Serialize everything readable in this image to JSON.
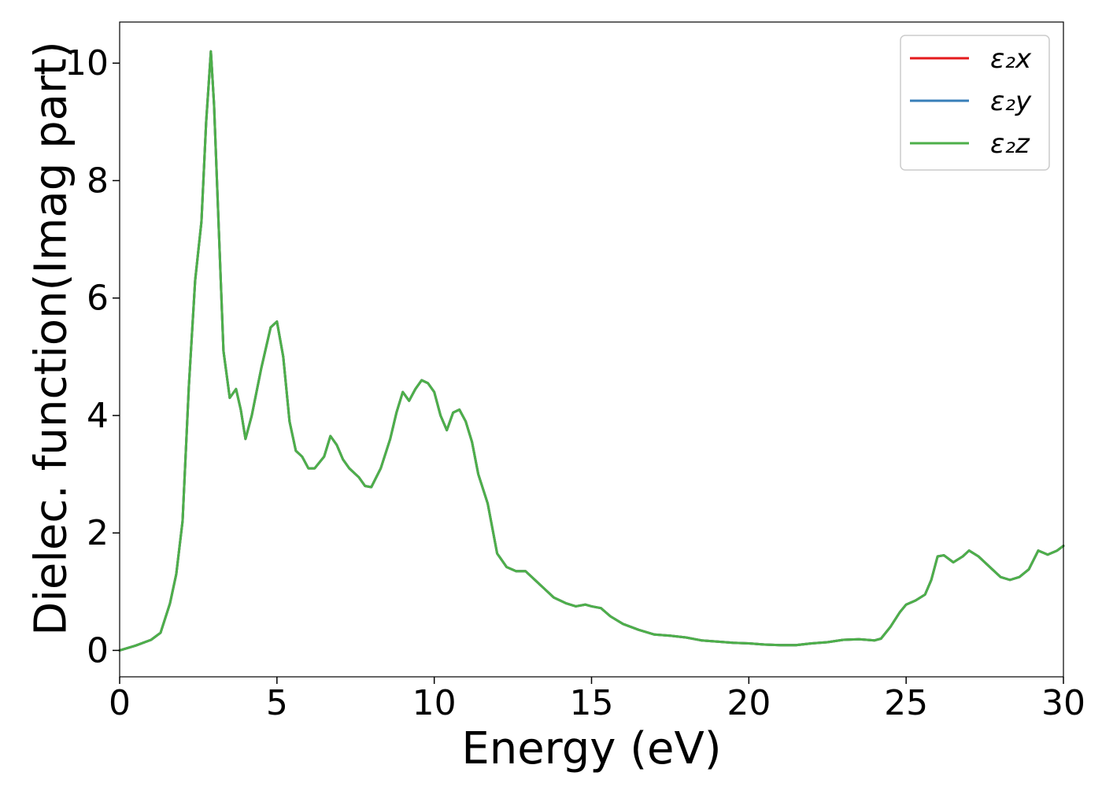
{
  "chart_data": {
    "type": "line",
    "xlabel": "Energy (eV)",
    "ylabel": "Dielec. function(Imag part)",
    "xlim": [
      0,
      30
    ],
    "ylim": [
      -0.45,
      10.7
    ],
    "xticks": [
      0,
      5,
      10,
      15,
      20,
      25,
      30
    ],
    "yticks": [
      0,
      2,
      4,
      6,
      8,
      10
    ],
    "legend_position": "top-right",
    "x": [
      0,
      0.5,
      1.0,
      1.3,
      1.6,
      1.8,
      2.0,
      2.2,
      2.4,
      2.6,
      2.75,
      2.9,
      3.0,
      3.15,
      3.3,
      3.5,
      3.7,
      3.85,
      4.0,
      4.2,
      4.5,
      4.8,
      5.0,
      5.2,
      5.4,
      5.6,
      5.8,
      6.0,
      6.2,
      6.5,
      6.7,
      6.9,
      7.1,
      7.3,
      7.6,
      7.8,
      8.0,
      8.3,
      8.6,
      8.8,
      9.0,
      9.2,
      9.4,
      9.6,
      9.8,
      10.0,
      10.2,
      10.4,
      10.6,
      10.8,
      11.0,
      11.2,
      11.4,
      11.7,
      12.0,
      12.3,
      12.6,
      12.9,
      13.2,
      13.5,
      13.8,
      14.2,
      14.5,
      14.8,
      15.0,
      15.3,
      15.6,
      16.0,
      16.5,
      17.0,
      17.5,
      18.0,
      18.5,
      19.0,
      19.5,
      20.0,
      20.5,
      21.0,
      21.5,
      22.0,
      22.5,
      23.0,
      23.5,
      24.0,
      24.2,
      24.5,
      24.8,
      25.0,
      25.3,
      25.6,
      25.8,
      26.0,
      26.2,
      26.5,
      26.8,
      27.0,
      27.3,
      27.6,
      28.0,
      28.3,
      28.6,
      28.9,
      29.2,
      29.5,
      29.8,
      30.0
    ],
    "series": [
      {
        "name": "ε₂x",
        "color": "#e41a1c",
        "values": [
          0.0,
          0.08,
          0.18,
          0.3,
          0.8,
          1.3,
          2.2,
          4.5,
          6.3,
          7.3,
          9.0,
          10.2,
          9.3,
          7.2,
          5.1,
          4.3,
          4.45,
          4.1,
          3.6,
          4.0,
          4.8,
          5.5,
          5.6,
          5.0,
          3.9,
          3.4,
          3.3,
          3.1,
          3.1,
          3.3,
          3.65,
          3.5,
          3.25,
          3.1,
          2.95,
          2.8,
          2.78,
          3.1,
          3.6,
          4.05,
          4.4,
          4.25,
          4.45,
          4.6,
          4.55,
          4.4,
          4.0,
          3.75,
          4.05,
          4.1,
          3.9,
          3.55,
          3.0,
          2.5,
          1.65,
          1.42,
          1.35,
          1.35,
          1.2,
          1.05,
          0.9,
          0.8,
          0.75,
          0.78,
          0.75,
          0.72,
          0.58,
          0.45,
          0.35,
          0.27,
          0.25,
          0.22,
          0.17,
          0.15,
          0.13,
          0.12,
          0.1,
          0.09,
          0.09,
          0.12,
          0.14,
          0.18,
          0.19,
          0.17,
          0.2,
          0.4,
          0.65,
          0.78,
          0.85,
          0.95,
          1.2,
          1.6,
          1.62,
          1.5,
          1.6,
          1.7,
          1.6,
          1.45,
          1.25,
          1.2,
          1.25,
          1.38,
          1.7,
          1.63,
          1.7,
          1.78
        ]
      },
      {
        "name": "ε₂y",
        "color": "#377eb8",
        "values": [
          0.0,
          0.08,
          0.18,
          0.3,
          0.8,
          1.3,
          2.2,
          4.5,
          6.3,
          7.3,
          9.0,
          10.2,
          9.3,
          7.2,
          5.1,
          4.3,
          4.45,
          4.1,
          3.6,
          4.0,
          4.8,
          5.5,
          5.6,
          5.0,
          3.9,
          3.4,
          3.3,
          3.1,
          3.1,
          3.3,
          3.65,
          3.5,
          3.25,
          3.1,
          2.95,
          2.8,
          2.78,
          3.1,
          3.6,
          4.05,
          4.4,
          4.25,
          4.45,
          4.6,
          4.55,
          4.4,
          4.0,
          3.75,
          4.05,
          4.1,
          3.9,
          3.55,
          3.0,
          2.5,
          1.65,
          1.42,
          1.35,
          1.35,
          1.2,
          1.05,
          0.9,
          0.8,
          0.75,
          0.78,
          0.75,
          0.72,
          0.58,
          0.45,
          0.35,
          0.27,
          0.25,
          0.22,
          0.17,
          0.15,
          0.13,
          0.12,
          0.1,
          0.09,
          0.09,
          0.12,
          0.14,
          0.18,
          0.19,
          0.17,
          0.2,
          0.4,
          0.65,
          0.78,
          0.85,
          0.95,
          1.2,
          1.6,
          1.62,
          1.5,
          1.6,
          1.7,
          1.6,
          1.45,
          1.25,
          1.2,
          1.25,
          1.38,
          1.7,
          1.63,
          1.7,
          1.78
        ]
      },
      {
        "name": "ε₂z",
        "color": "#4daf4a",
        "values": [
          0.0,
          0.08,
          0.18,
          0.3,
          0.8,
          1.3,
          2.2,
          4.5,
          6.3,
          7.3,
          9.0,
          10.2,
          9.3,
          7.2,
          5.1,
          4.3,
          4.45,
          4.1,
          3.6,
          4.0,
          4.8,
          5.5,
          5.6,
          5.0,
          3.9,
          3.4,
          3.3,
          3.1,
          3.1,
          3.3,
          3.65,
          3.5,
          3.25,
          3.1,
          2.95,
          2.8,
          2.78,
          3.1,
          3.6,
          4.05,
          4.4,
          4.25,
          4.45,
          4.6,
          4.55,
          4.4,
          4.0,
          3.75,
          4.05,
          4.1,
          3.9,
          3.55,
          3.0,
          2.5,
          1.65,
          1.42,
          1.35,
          1.35,
          1.2,
          1.05,
          0.9,
          0.8,
          0.75,
          0.78,
          0.75,
          0.72,
          0.58,
          0.45,
          0.35,
          0.27,
          0.25,
          0.22,
          0.17,
          0.15,
          0.13,
          0.12,
          0.1,
          0.09,
          0.09,
          0.12,
          0.14,
          0.18,
          0.19,
          0.17,
          0.2,
          0.4,
          0.65,
          0.78,
          0.85,
          0.95,
          1.2,
          1.6,
          1.62,
          1.5,
          1.6,
          1.7,
          1.6,
          1.45,
          1.25,
          1.2,
          1.25,
          1.38,
          1.7,
          1.63,
          1.7,
          1.78
        ]
      }
    ]
  }
}
